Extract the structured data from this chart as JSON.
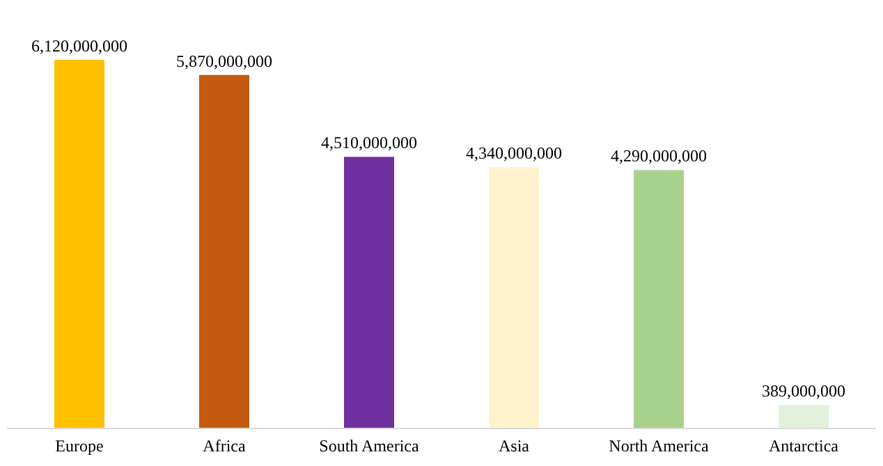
{
  "chart_data": {
    "type": "bar",
    "categories": [
      "Europe",
      "Africa",
      "South America",
      "Asia",
      "North America",
      "Antarctica"
    ],
    "values": [
      6120000000,
      5870000000,
      4510000000,
      4340000000,
      4290000000,
      389000000
    ],
    "value_labels": [
      "6,120,000,000",
      "5,870,000,000",
      "4,510,000,000",
      "4,340,000,000",
      "4,290,000,000",
      "389,000,000"
    ],
    "colors": [
      "#ffc000",
      "#c55a11",
      "#7030a0",
      "#fff2cc",
      "#a9d18e",
      "#e2f0d9"
    ]
  }
}
